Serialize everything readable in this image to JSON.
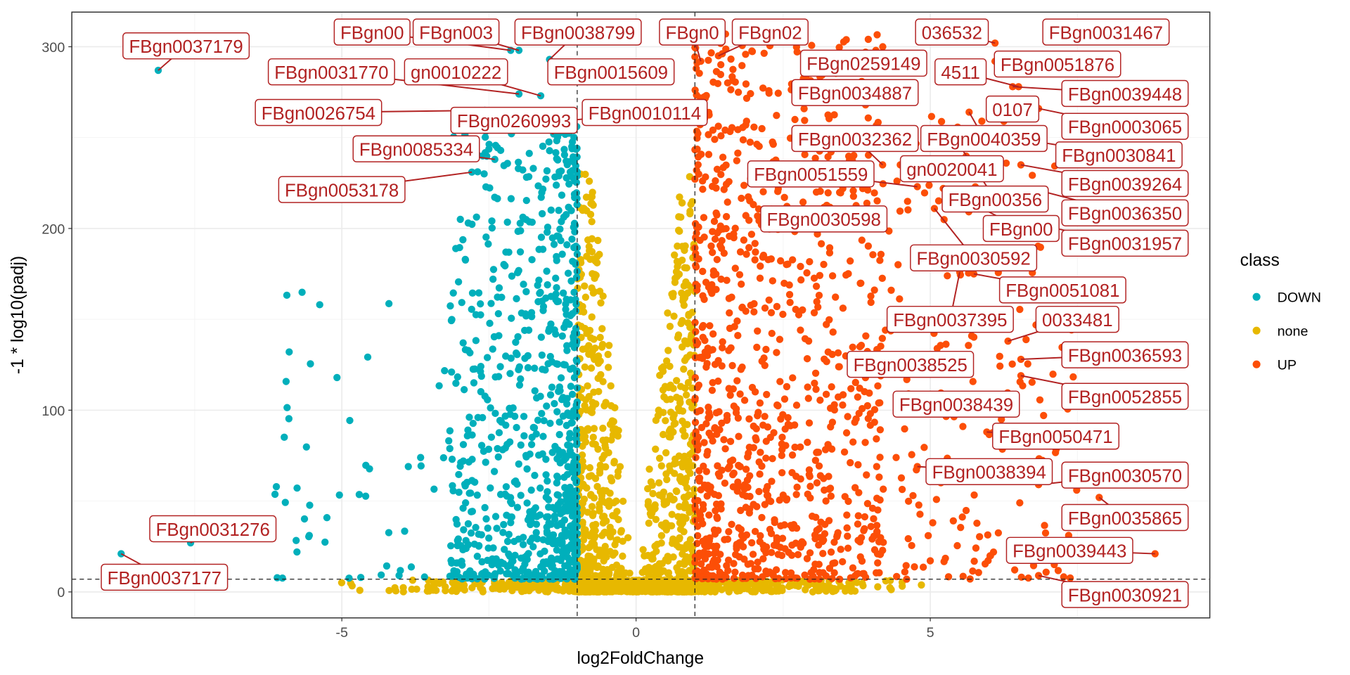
{
  "chart_data": {
    "type": "scatter",
    "title": "",
    "xlabel": "log2FoldChange",
    "ylabel": "-1 * log10(padj)",
    "xlim": [
      -9.6,
      9.7
    ],
    "ylim": [
      -14,
      319
    ],
    "x_ticks": [
      -5,
      0,
      5
    ],
    "y_ticks": [
      0,
      100,
      200,
      300
    ],
    "x_tick_labels": [
      "-5",
      "0",
      "5"
    ],
    "y_tick_labels": [
      "0",
      "100",
      "200",
      "300"
    ],
    "grid": true,
    "threshold_lines": {
      "x": [
        -1,
        1
      ],
      "y": 7
    },
    "legend": {
      "title": "class",
      "position": "right",
      "entries": [
        {
          "name": "DOWN",
          "color": "#00AFBB"
        },
        {
          "name": "none",
          "color": "#E7B800"
        },
        {
          "name": "UP",
          "color": "#FC4E07"
        }
      ]
    },
    "label_color": "#B22222",
    "labeled_points": [
      {
        "label": "FBgn00",
        "x": -2.13,
        "y": 298,
        "class": "DOWN"
      },
      {
        "label": "FBgn003",
        "x": -1.99,
        "y": 298,
        "class": "DOWN"
      },
      {
        "label": "FBgn0",
        "x": 1.1,
        "y": 292,
        "class": "UP"
      },
      {
        "label": "FBgn02",
        "x": 1.4,
        "y": 295,
        "class": "UP"
      },
      {
        "label": "036532",
        "x": 6.1,
        "y": 302,
        "class": "UP"
      },
      {
        "label": "FBgn0038799",
        "x": -1.47,
        "y": 293,
        "class": "DOWN"
      },
      {
        "label": "FBgn0259149",
        "x": 3.9,
        "y": 297,
        "class": "UP"
      },
      {
        "label": "FBgn0031467",
        "x": 6.99,
        "y": 304,
        "class": "UP"
      },
      {
        "label": "FBgn0037179",
        "x": -8.12,
        "y": 287,
        "class": "DOWN"
      },
      {
        "label": "gn0010222",
        "x": -1.62,
        "y": 273,
        "class": "DOWN"
      },
      {
        "label": "FBgn0031770",
        "x": -1.99,
        "y": 274,
        "class": "DOWN"
      },
      {
        "label": "FBgn0015609",
        "x": -1.32,
        "y": 283,
        "class": "DOWN"
      },
      {
        "label": "4511",
        "x": 6.5,
        "y": 278,
        "class": "UP"
      },
      {
        "label": "FBgn0034887",
        "x": 3.9,
        "y": 268,
        "class": "UP"
      },
      {
        "label": "FBgn0051876",
        "x": 6.1,
        "y": 292,
        "class": "UP"
      },
      {
        "label": "FBgn0039448",
        "x": 6.4,
        "y": 278,
        "class": "UP"
      },
      {
        "label": "FBgn0010114",
        "x": -1.25,
        "y": 259,
        "class": "DOWN"
      },
      {
        "label": "FBgn0026754",
        "x": -2.57,
        "y": 265,
        "class": "DOWN"
      },
      {
        "label": "FBgn0260993",
        "x": -1.4,
        "y": 252,
        "class": "DOWN"
      },
      {
        "label": "0107",
        "x": 6.25,
        "y": 259,
        "class": "UP"
      },
      {
        "label": "FBgn0040359",
        "x": 5.66,
        "y": 264,
        "class": "UP"
      },
      {
        "label": "FBgn0003065",
        "x": 6.84,
        "y": 266,
        "class": "UP"
      },
      {
        "label": "FBgn0030841",
        "x": 5.81,
        "y": 253,
        "class": "UP"
      },
      {
        "label": "FBgn0085334",
        "x": -2.4,
        "y": 238,
        "class": "DOWN"
      },
      {
        "label": "FBgn0053178",
        "x": -2.79,
        "y": 231,
        "class": "DOWN"
      },
      {
        "label": "gn0020041",
        "x": 4.49,
        "y": 235,
        "class": "UP"
      },
      {
        "label": "FBgn0032362",
        "x": 4.19,
        "y": 235,
        "class": "UP"
      },
      {
        "label": "FBgn00356",
        "x": 5.51,
        "y": 245,
        "class": "UP"
      },
      {
        "label": "FBgn0039264",
        "x": 6.54,
        "y": 235,
        "class": "UP"
      },
      {
        "label": "FBgn0051559",
        "x": 4.78,
        "y": 223,
        "class": "UP"
      },
      {
        "label": "FBgn00",
        "x": 5.22,
        "y": 222,
        "class": "UP"
      },
      {
        "label": "FBgn0036350",
        "x": 6.84,
        "y": 221,
        "class": "UP"
      },
      {
        "label": "FBgn0030598",
        "x": 2.13,
        "y": 202,
        "class": "UP"
      },
      {
        "label": "FBgn0030592",
        "x": 5.07,
        "y": 211,
        "class": "UP"
      },
      {
        "label": "FBgn0031957",
        "x": 6.84,
        "y": 202,
        "class": "UP"
      },
      {
        "label": "FBgn0051081",
        "x": 5.74,
        "y": 175,
        "class": "UP"
      },
      {
        "label": "0033481",
        "x": 6.32,
        "y": 138,
        "class": "UP"
      },
      {
        "label": "FBgn0037395",
        "x": 5.5,
        "y": 176,
        "class": "UP"
      },
      {
        "label": "FBgn0036593",
        "x": 6.54,
        "y": 128,
        "class": "UP"
      },
      {
        "label": "FBgn0038525",
        "x": 3.9,
        "y": 126,
        "class": "UP"
      },
      {
        "label": "FBgn0052855",
        "x": 6.54,
        "y": 119,
        "class": "UP"
      },
      {
        "label": "FBgn0038439",
        "x": 4.63,
        "y": 109,
        "class": "UP"
      },
      {
        "label": "FBgn0050471",
        "x": 5.96,
        "y": 88,
        "class": "UP"
      },
      {
        "label": "FBgn0038394",
        "x": 4.78,
        "y": 69,
        "class": "UP"
      },
      {
        "label": "FBgn0030570",
        "x": 6.84,
        "y": 59,
        "class": "UP"
      },
      {
        "label": "FBgn0035865",
        "x": 7.87,
        "y": 52,
        "class": "UP"
      },
      {
        "label": "FBgn0039443",
        "x": 8.82,
        "y": 21,
        "class": "UP"
      },
      {
        "label": "FBgn0030921",
        "x": 6.84,
        "y": 9,
        "class": "UP"
      },
      {
        "label": "FBgn0031276",
        "x": -7.57,
        "y": 27,
        "class": "DOWN"
      },
      {
        "label": "FBgn0037177",
        "x": -8.75,
        "y": 21,
        "class": "DOWN"
      }
    ]
  }
}
